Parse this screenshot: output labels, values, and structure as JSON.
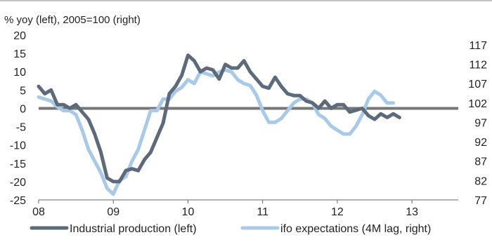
{
  "chart_data": {
    "type": "line",
    "subtitle": "% yoy (left), 2005=100 (right)",
    "x_tick_labels": [
      "08",
      "09",
      "10",
      "11",
      "12",
      "13"
    ],
    "left_axis": {
      "ylim": [
        -25,
        20
      ],
      "ticks": [
        "20",
        "15",
        "10",
        "5",
        "0",
        "-5",
        "-10",
        "-15",
        "-20",
        "-25"
      ]
    },
    "right_axis": {
      "ylim": [
        77,
        119.5
      ],
      "ticks": [
        "117",
        "112",
        "107",
        "102",
        "97",
        "92",
        "87",
        "82",
        "77"
      ]
    },
    "zero_line": true,
    "legend_position": "bottom",
    "series": [
      {
        "name": "Industrial production (left)",
        "axis": "left",
        "color": "#5c6a7a",
        "x": [
          2008.0,
          2008.083,
          2008.167,
          2008.25,
          2008.333,
          2008.417,
          2008.5,
          2008.583,
          2008.667,
          2008.75,
          2008.833,
          2008.917,
          2009.0,
          2009.083,
          2009.167,
          2009.25,
          2009.333,
          2009.417,
          2009.5,
          2009.583,
          2009.667,
          2009.75,
          2009.833,
          2009.917,
          2010.0,
          2010.083,
          2010.167,
          2010.25,
          2010.333,
          2010.417,
          2010.5,
          2010.583,
          2010.667,
          2010.75,
          2010.833,
          2010.917,
          2011.0,
          2011.083,
          2011.167,
          2011.25,
          2011.333,
          2011.417,
          2011.5,
          2011.583,
          2011.667,
          2011.75,
          2011.833,
          2011.917,
          2012.0,
          2012.083,
          2012.167,
          2012.25,
          2012.333,
          2012.417,
          2012.5,
          2012.583,
          2012.667,
          2012.75,
          2012.833,
          2012.917,
          2013.0,
          2013.083,
          2013.167,
          2013.25,
          2013.333
        ],
        "y": [
          6,
          4,
          5,
          1,
          1,
          0,
          1,
          -1,
          -3,
          -7,
          -12,
          -19,
          -20,
          -20,
          -17,
          -16.5,
          -17,
          -14,
          -12,
          -8,
          -4,
          4,
          6,
          9,
          14.5,
          13,
          10,
          11,
          10.5,
          8,
          12,
          11,
          11,
          13,
          10,
          8,
          6,
          5.5,
          8.5,
          6,
          4,
          3.5,
          3.5,
          2,
          1.5,
          0,
          2,
          0,
          1,
          1,
          -1,
          -0.5,
          0,
          -2,
          -3,
          -1.5,
          -2.5,
          -1.5,
          -2.5,
          null,
          null,
          null,
          null,
          null,
          null
        ]
      },
      {
        "name": "ifo expectations (4M lag, right)",
        "axis": "right",
        "color": "#a9c9e8",
        "x": [
          2008.0,
          2008.083,
          2008.167,
          2008.25,
          2008.333,
          2008.417,
          2008.5,
          2008.583,
          2008.667,
          2008.75,
          2008.833,
          2008.917,
          2009.0,
          2009.083,
          2009.167,
          2009.25,
          2009.333,
          2009.417,
          2009.5,
          2009.583,
          2009.667,
          2009.75,
          2009.833,
          2009.917,
          2010.0,
          2010.083,
          2010.167,
          2010.25,
          2010.333,
          2010.417,
          2010.5,
          2010.583,
          2010.667,
          2010.75,
          2010.833,
          2010.917,
          2011.0,
          2011.083,
          2011.167,
          2011.25,
          2011.333,
          2011.417,
          2011.5,
          2011.583,
          2011.667,
          2011.75,
          2011.833,
          2011.917,
          2012.0,
          2012.083,
          2012.167,
          2012.25,
          2012.333,
          2012.417,
          2012.5,
          2012.583,
          2012.667,
          2012.75,
          2012.833,
          2012.917,
          2013.0,
          2013.083,
          2013.167,
          2013.25,
          2013.333,
          2013.417,
          2013.5,
          2013.583,
          2013.667,
          2013.75
        ],
        "y": [
          103.5,
          103,
          102.5,
          101,
          100,
          100,
          99,
          95,
          90,
          87,
          84,
          80,
          78.5,
          82,
          83,
          87,
          90,
          95,
          100,
          100,
          103,
          103,
          105,
          106,
          108,
          107,
          110,
          109.5,
          109,
          110,
          110.5,
          110,
          108,
          107,
          106.5,
          104,
          100,
          97,
          97,
          98,
          100,
          102,
          103,
          103,
          102,
          99,
          98,
          96,
          95,
          94,
          94,
          96,
          99,
          103,
          105,
          104,
          102,
          102,
          null,
          null,
          null,
          null,
          null,
          null,
          null,
          null,
          null,
          null,
          null,
          null
        ]
      }
    ]
  }
}
